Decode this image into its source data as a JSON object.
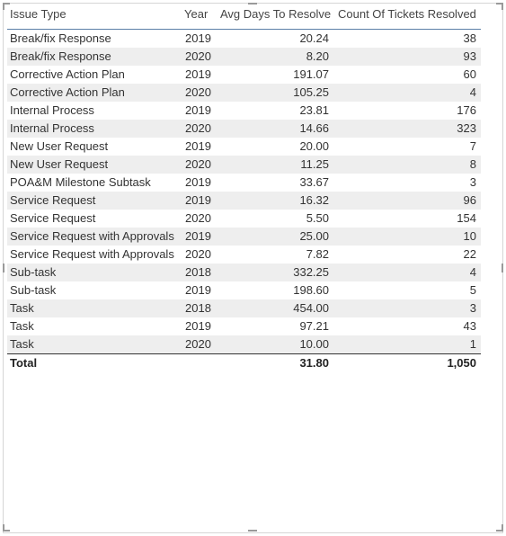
{
  "table": {
    "headers": [
      "Issue Type",
      "Year",
      "Avg Days To Resolve",
      "Count Of Tickets Resolved"
    ],
    "rows": [
      [
        "Break/fix Response",
        "2019",
        "20.24",
        "38"
      ],
      [
        "Break/fix Response",
        "2020",
        "8.20",
        "93"
      ],
      [
        "Corrective Action Plan",
        "2019",
        "191.07",
        "60"
      ],
      [
        "Corrective Action Plan",
        "2020",
        "105.25",
        "4"
      ],
      [
        "Internal Process",
        "2019",
        "23.81",
        "176"
      ],
      [
        "Internal Process",
        "2020",
        "14.66",
        "323"
      ],
      [
        "New User Request",
        "2019",
        "20.00",
        "7"
      ],
      [
        "New User Request",
        "2020",
        "11.25",
        "8"
      ],
      [
        "POA&M Milestone Subtask",
        "2019",
        "33.67",
        "3"
      ],
      [
        "Service Request",
        "2019",
        "16.32",
        "96"
      ],
      [
        "Service Request",
        "2020",
        "5.50",
        "154"
      ],
      [
        "Service Request with Approvals",
        "2019",
        "25.00",
        "10"
      ],
      [
        "Service Request with Approvals",
        "2020",
        "7.82",
        "22"
      ],
      [
        "Sub-task",
        "2018",
        "332.25",
        "4"
      ],
      [
        "Sub-task",
        "2019",
        "198.60",
        "5"
      ],
      [
        "Task",
        "2018",
        "454.00",
        "3"
      ],
      [
        "Task",
        "2019",
        "97.21",
        "43"
      ],
      [
        "Task",
        "2020",
        "10.00",
        "1"
      ]
    ],
    "total": [
      "Total",
      "31.80",
      "1,050"
    ]
  }
}
